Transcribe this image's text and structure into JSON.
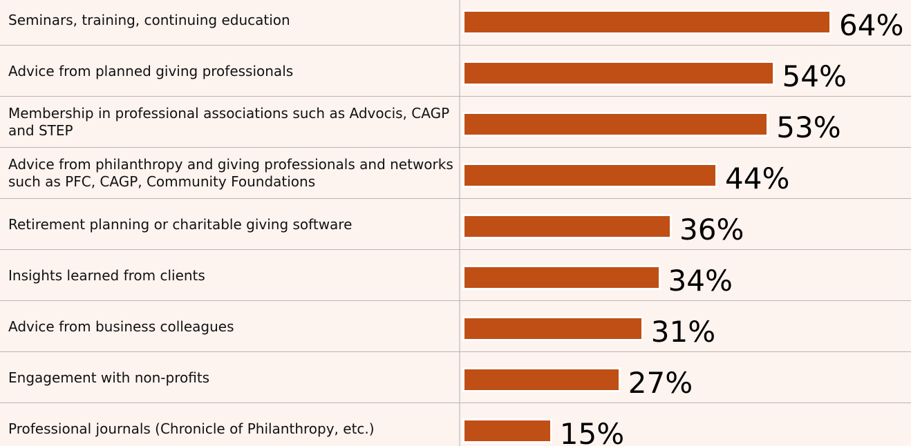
{
  "chart_data": {
    "type": "bar",
    "orientation": "horizontal",
    "categories": [
      "Seminars, training, continuing education",
      "Advice from planned giving professionals",
      "Membership in professional associations such as Advocis, CAGP and STEP",
      "Advice from philanthropy and giving professionals and networks such as PFC, CAGP, Community Foundations",
      "Retirement planning or charitable giving software",
      "Insights learned from clients",
      "Advice from business colleagues",
      "Engagement with non-profits",
      "Professional journals (Chronicle of Philanthropy, etc.)"
    ],
    "values": [
      64,
      54,
      53,
      44,
      36,
      34,
      31,
      27,
      15
    ],
    "value_labels": [
      "64%",
      "54%",
      "53%",
      "44%",
      "36%",
      "34%",
      "31%",
      "27%",
      "15%"
    ],
    "color": "#c04f15"
  }
}
